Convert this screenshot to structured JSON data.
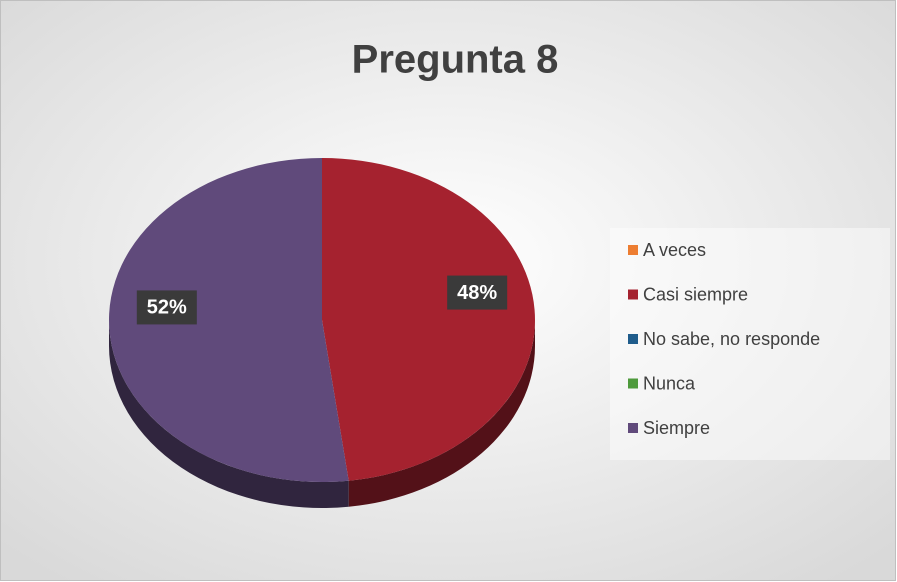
{
  "chart_data": {
    "type": "pie",
    "title": "Pregunta 8",
    "categories": [
      "A veces",
      "Casi siempre",
      "No sabe, no responde",
      "Nunca",
      "Siempre"
    ],
    "values": [
      0,
      48,
      0,
      0,
      52
    ],
    "value_labels": [
      null,
      "48%",
      null,
      null,
      "52%"
    ],
    "colors": [
      "#ed7d31",
      "#a5222f",
      "#1f5c8b",
      "#4e9a3c",
      "#604a7b"
    ],
    "legend": "right"
  }
}
